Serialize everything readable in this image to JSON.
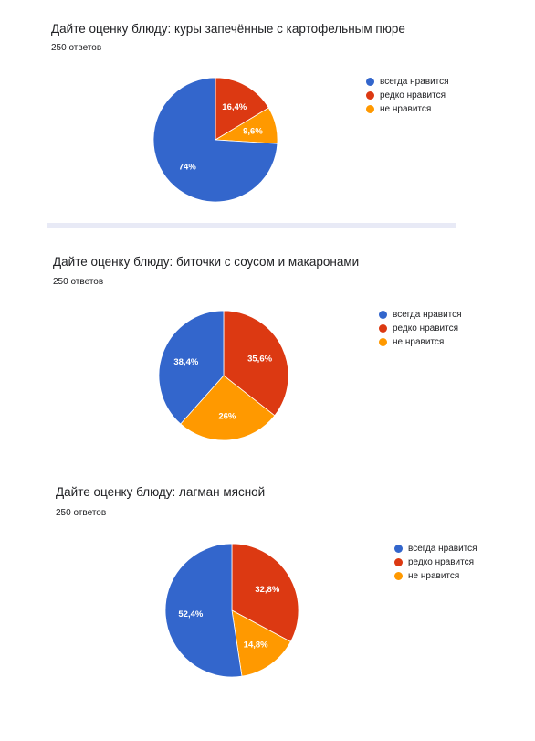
{
  "colors": {
    "blue": "#3366cc",
    "red": "#dc3912",
    "orange": "#ff9900"
  },
  "chart_data": [
    {
      "type": "pie",
      "title": "Дайте оценку блюду: куры запечённые с картофельным пюре",
      "subtitle": "250 ответов",
      "categories": [
        "всегда нравится",
        "редко нравится",
        "не нравится"
      ],
      "values": [
        74,
        16.4,
        9.6
      ],
      "data_labels": [
        "74%",
        "16,4%",
        "9,6%"
      ],
      "colors": [
        "#3366cc",
        "#dc3912",
        "#ff9900"
      ],
      "legend": "right"
    },
    {
      "type": "pie",
      "title": "Дайте оценку блюду: биточки с соусом и макаронами",
      "subtitle": "250 ответов",
      "categories": [
        "всегда нравится",
        "редко нравится",
        "не нравится"
      ],
      "values": [
        38.4,
        35.6,
        26
      ],
      "data_labels": [
        "38,4%",
        "35,6%",
        "26%"
      ],
      "colors": [
        "#3366cc",
        "#dc3912",
        "#ff9900"
      ],
      "legend": "right"
    },
    {
      "type": "pie",
      "title": "Дайте оценку блюду: лагман мясной",
      "subtitle": "250 ответов",
      "categories": [
        "всегда нравится",
        "редко нравится",
        "не нравится"
      ],
      "values": [
        52.4,
        32.8,
        14.8
      ],
      "data_labels": [
        "52,4%",
        "32,8%",
        "14,8%"
      ],
      "colors": [
        "#3366cc",
        "#dc3912",
        "#ff9900"
      ],
      "legend": "right"
    }
  ]
}
